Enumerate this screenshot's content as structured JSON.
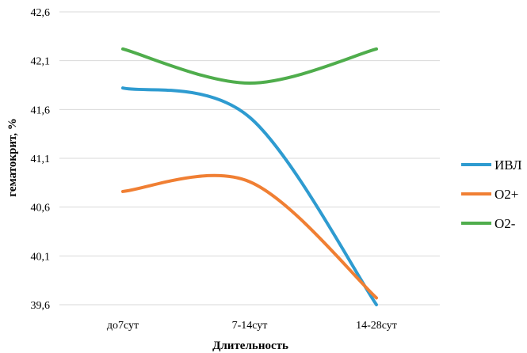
{
  "chart_data": {
    "type": "line",
    "categories": [
      "до7сут",
      "7-14сут",
      "14-28сут"
    ],
    "xlabel": "Длительность",
    "ylabel": "гематокрит, %",
    "ylim": [
      39.6,
      42.6
    ],
    "yticks": [
      "39,6",
      "40,1",
      "40,6",
      "41,1",
      "41,6",
      "42,1",
      "42,6"
    ],
    "grid": true,
    "legend_position": "right",
    "smooth": true,
    "series": [
      {
        "name": "ИВЛ",
        "color": "#2e9bd0",
        "values": [
          41.82,
          41.52,
          39.6
        ]
      },
      {
        "name": "O2+",
        "color": "#f07f33",
        "values": [
          40.76,
          40.86,
          39.67
        ]
      },
      {
        "name": "O2-",
        "color": "#4fad4c",
        "values": [
          42.22,
          41.87,
          42.22
        ]
      }
    ]
  }
}
